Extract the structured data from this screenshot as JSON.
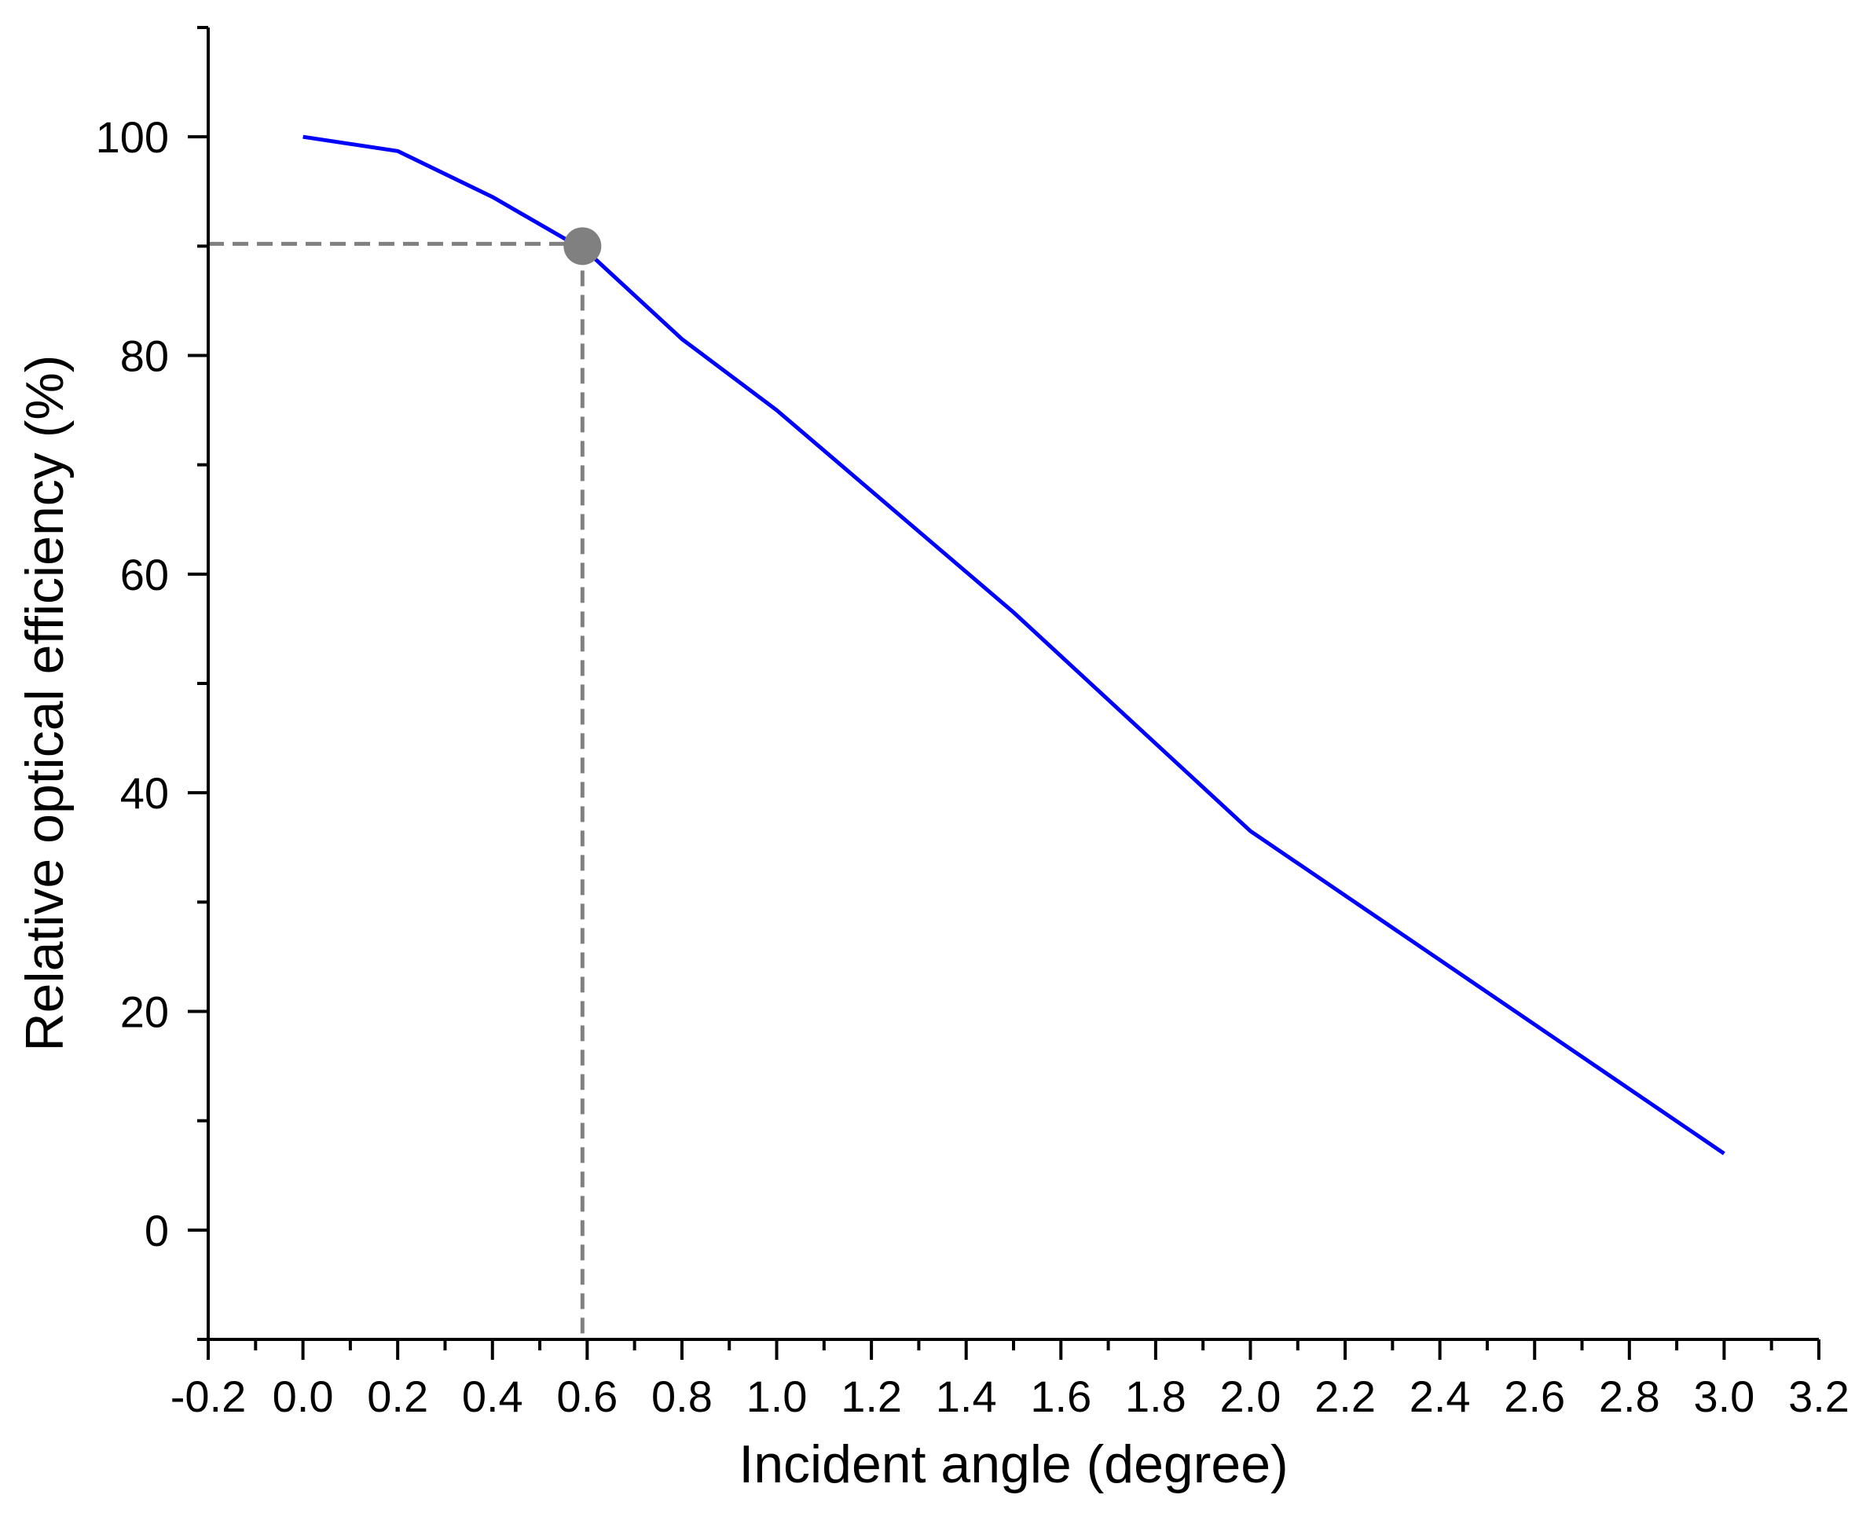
{
  "chart_data": {
    "type": "line",
    "xlabel": "Incident angle (degree)",
    "ylabel": "Relative optical efficiency (%)",
    "xlim": [
      -0.2,
      3.2
    ],
    "ylim": [
      -10,
      110
    ],
    "x_ticks": [
      "-0.2",
      "0.0",
      "0.2",
      "0.4",
      "0.6",
      "0.8",
      "1.0",
      "1.2",
      "1.4",
      "1.6",
      "1.8",
      "2.0",
      "2.2",
      "2.4",
      "2.6",
      "2.8",
      "3.0",
      "3.2"
    ],
    "y_ticks": [
      "0",
      "20",
      "40",
      "60",
      "80",
      "100"
    ],
    "grid": false,
    "series": [
      {
        "color": "#0000ff",
        "x": [
          0.0,
          0.2,
          0.4,
          0.6,
          0.8,
          1.0,
          1.5,
          2.0,
          3.0
        ],
        "y": [
          100,
          98.7,
          94.5,
          89.5,
          81.5,
          75.0,
          56.5,
          36.5,
          7.0
        ]
      }
    ],
    "highlight_point": {
      "x": 0.59,
      "y": 90,
      "color": "#808080"
    },
    "reference_lines": {
      "color": "#808080",
      "style": "dashed",
      "x": 0.59,
      "y": 90
    }
  }
}
